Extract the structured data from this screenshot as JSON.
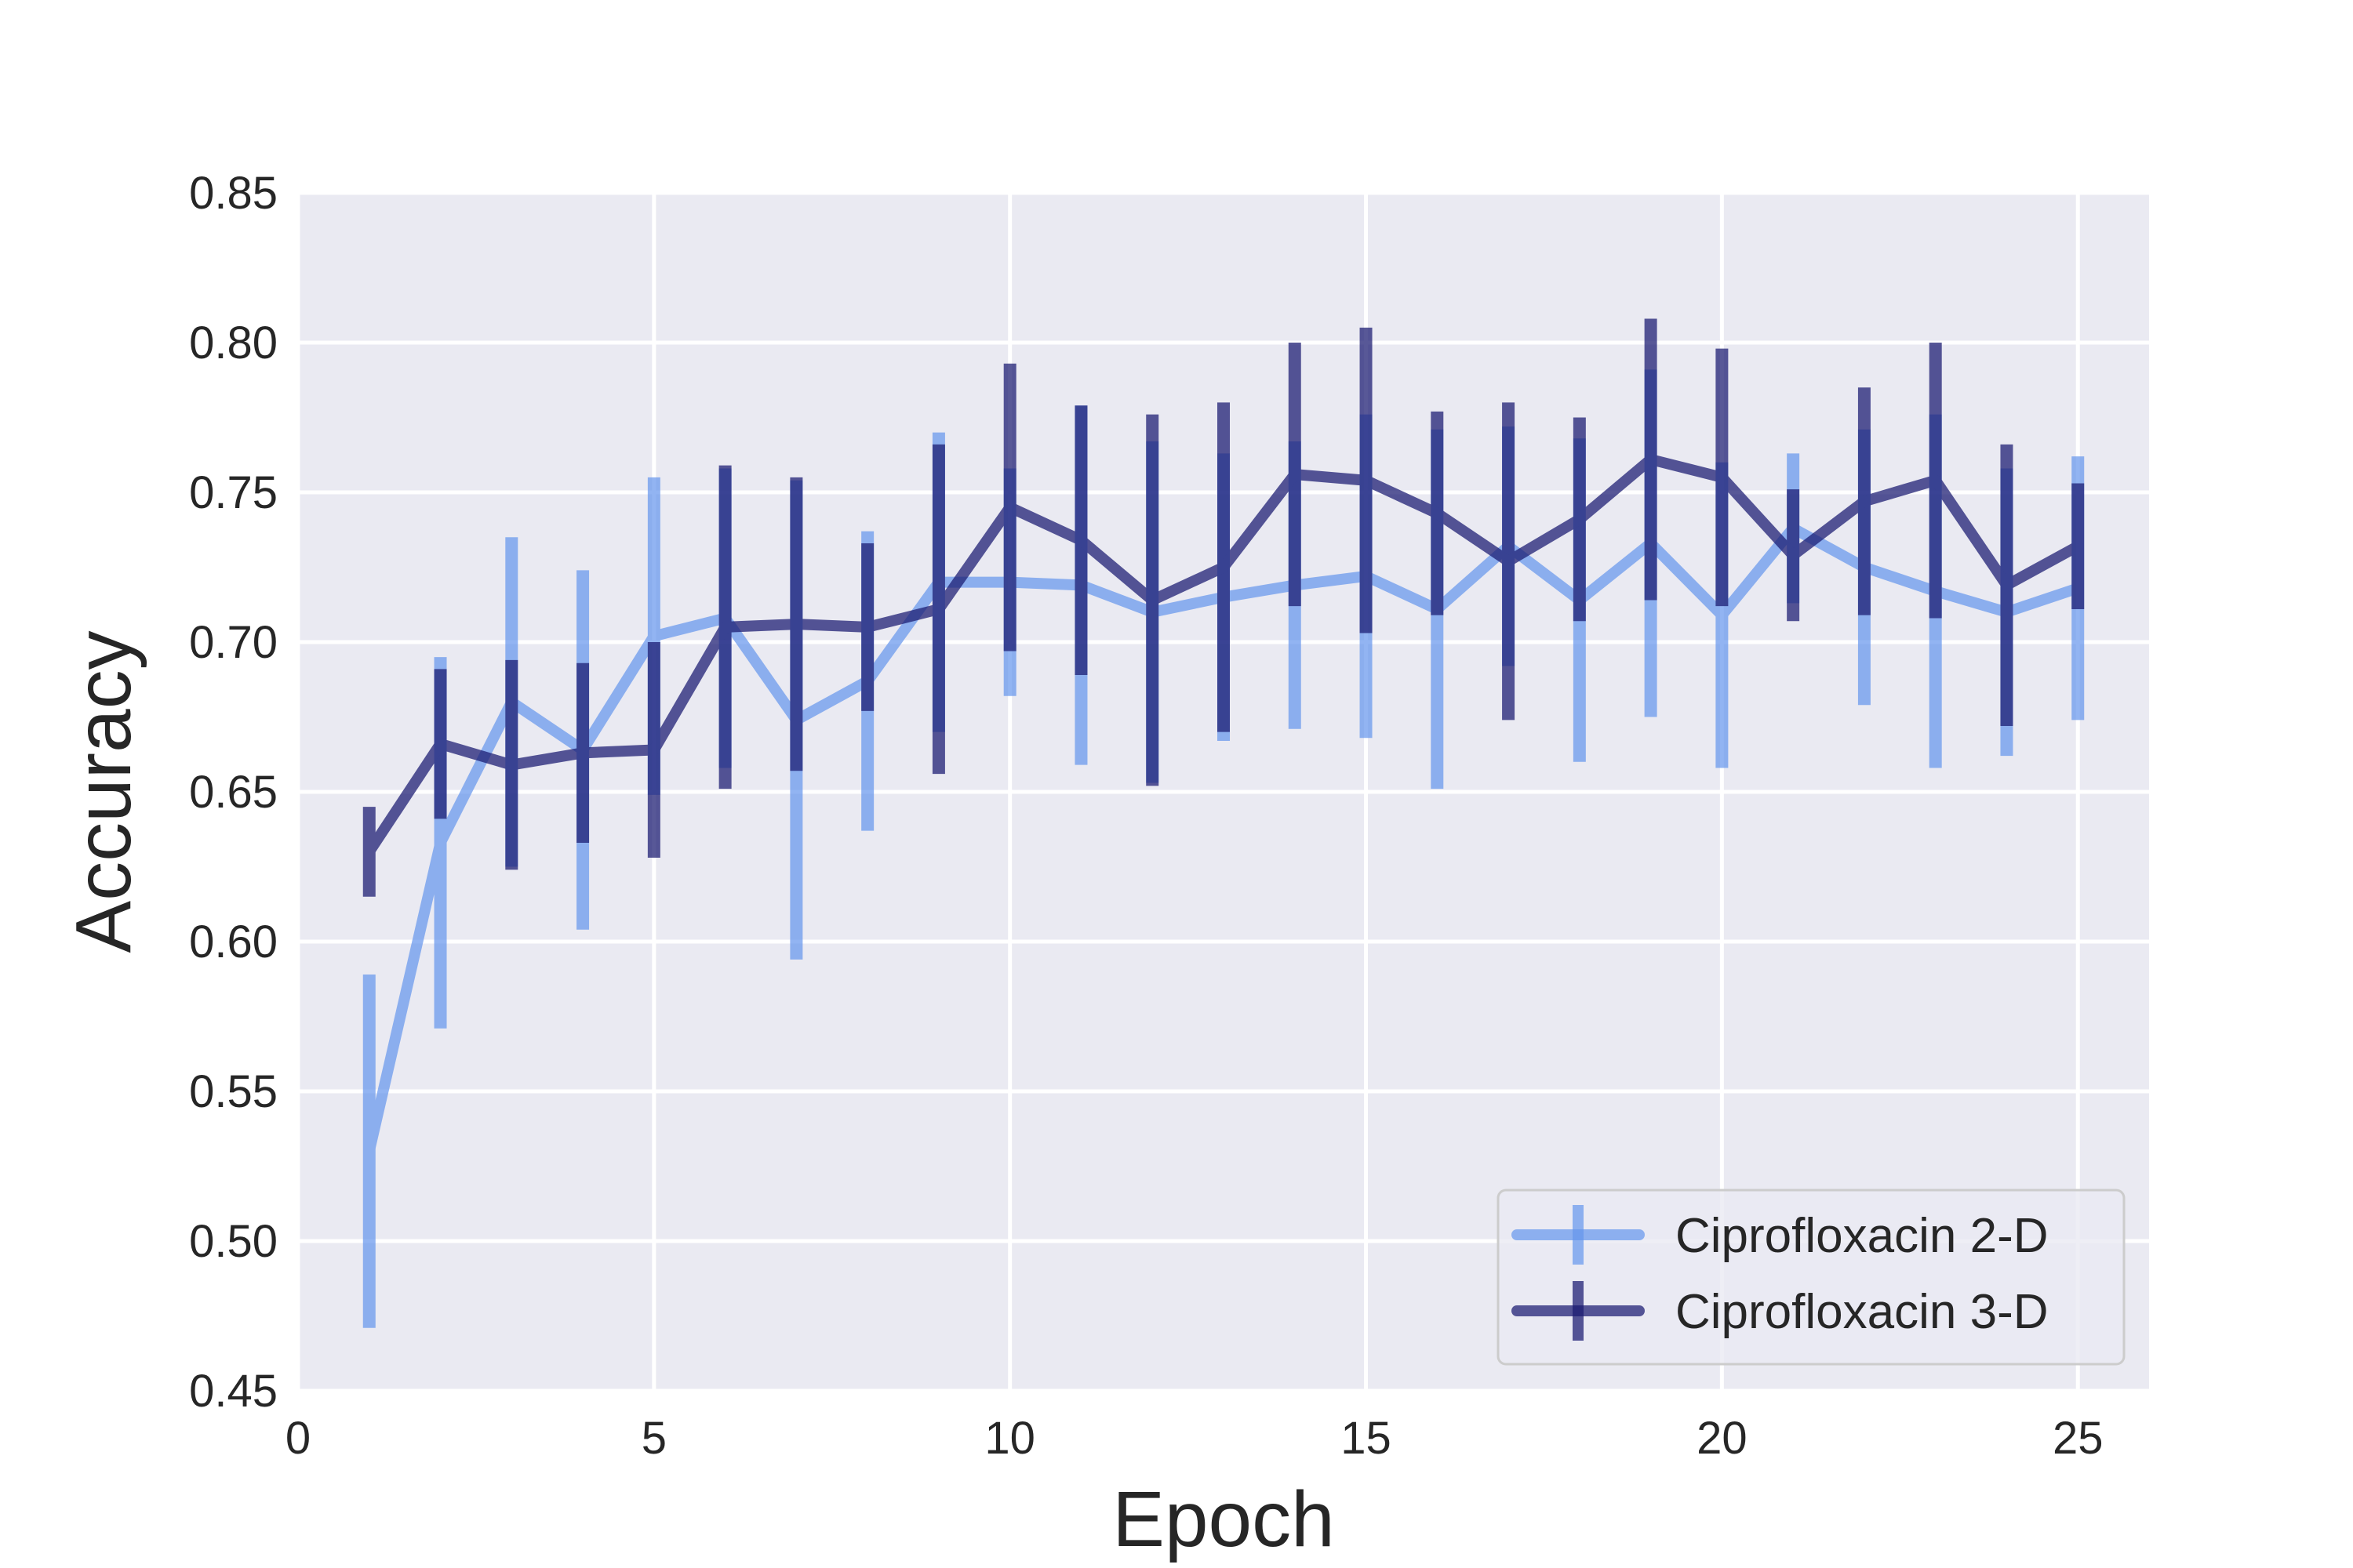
{
  "chart_data": {
    "type": "line",
    "xlabel": "Epoch",
    "ylabel": "Accuracy",
    "xlim": [
      0,
      26
    ],
    "ylim": [
      0.45,
      0.85
    ],
    "xticks": [
      0,
      5,
      10,
      15,
      20,
      25
    ],
    "xtick_labels": [
      "0",
      "5",
      "10",
      "15",
      "20",
      "25"
    ],
    "yticks": [
      0.45,
      0.5,
      0.55,
      0.6,
      0.65,
      0.7,
      0.75,
      0.8,
      0.85
    ],
    "ytick_labels": [
      "0.45",
      "0.50",
      "0.55",
      "0.60",
      "0.65",
      "0.70",
      "0.75",
      "0.80",
      "0.85"
    ],
    "grid": true,
    "legend_position": "bottom-right",
    "x": [
      1,
      2,
      3,
      4,
      5,
      6,
      7,
      8,
      9,
      10,
      11,
      12,
      13,
      14,
      15,
      16,
      17,
      18,
      19,
      20,
      21,
      22,
      23,
      24,
      25
    ],
    "series": [
      {
        "name": "Ciprofloxacin 2-D",
        "color": "#6495ED",
        "values": [
          0.53,
          0.633,
          0.68,
          0.664,
          0.702,
          0.708,
          0.674,
          0.687,
          0.72,
          0.72,
          0.719,
          0.71,
          0.715,
          0.719,
          0.722,
          0.711,
          0.732,
          0.714,
          0.733,
          0.709,
          0.738,
          0.725,
          0.717,
          0.71,
          0.718
        ],
        "errors": [
          0.059,
          0.062,
          0.055,
          0.06,
          0.053,
          0.05,
          0.08,
          0.05,
          0.05,
          0.038,
          0.06,
          0.057,
          0.048,
          0.048,
          0.054,
          0.06,
          0.04,
          0.054,
          0.058,
          0.051,
          0.025,
          0.046,
          0.059,
          0.048,
          0.044
        ]
      },
      {
        "name": "Ciprofloxacin 3-D",
        "color": "#191970",
        "values": [
          0.63,
          0.666,
          0.659,
          0.663,
          0.664,
          0.705,
          0.706,
          0.705,
          0.711,
          0.745,
          0.734,
          0.714,
          0.725,
          0.756,
          0.754,
          0.743,
          0.727,
          0.741,
          0.761,
          0.755,
          0.729,
          0.747,
          0.754,
          0.719,
          0.732
        ],
        "errors": [
          0.015,
          0.025,
          0.035,
          0.03,
          0.036,
          0.054,
          0.049,
          0.028,
          0.055,
          0.048,
          0.045,
          0.062,
          0.055,
          0.044,
          0.051,
          0.034,
          0.053,
          0.034,
          0.047,
          0.043,
          0.022,
          0.038,
          0.046,
          0.047,
          0.021
        ]
      }
    ]
  }
}
